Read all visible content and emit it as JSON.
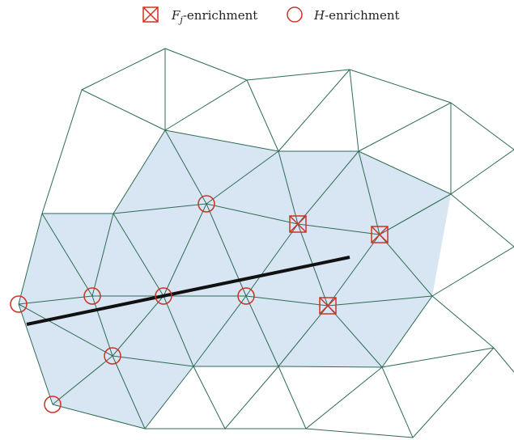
{
  "legend": {
    "items": [
      {
        "id": "fj",
        "marker": "boxed-cross",
        "symbol": "F",
        "subscript": "j",
        "suffix": "-enrichment"
      },
      {
        "id": "h",
        "marker": "circle",
        "symbol": "H",
        "subscript": "",
        "suffix": "-enrichment"
      }
    ]
  },
  "colors": {
    "mesh_edge": "#2e6b52",
    "enriched_fill": "#d8e6f4",
    "marker": "#cc3322",
    "crack": "#111111",
    "background": "#ffffff"
  },
  "diagram": {
    "description_type": "xfem-triangular-mesh",
    "enriched_region": "shaded-elements",
    "crack": "straight-line-segment"
  }
}
